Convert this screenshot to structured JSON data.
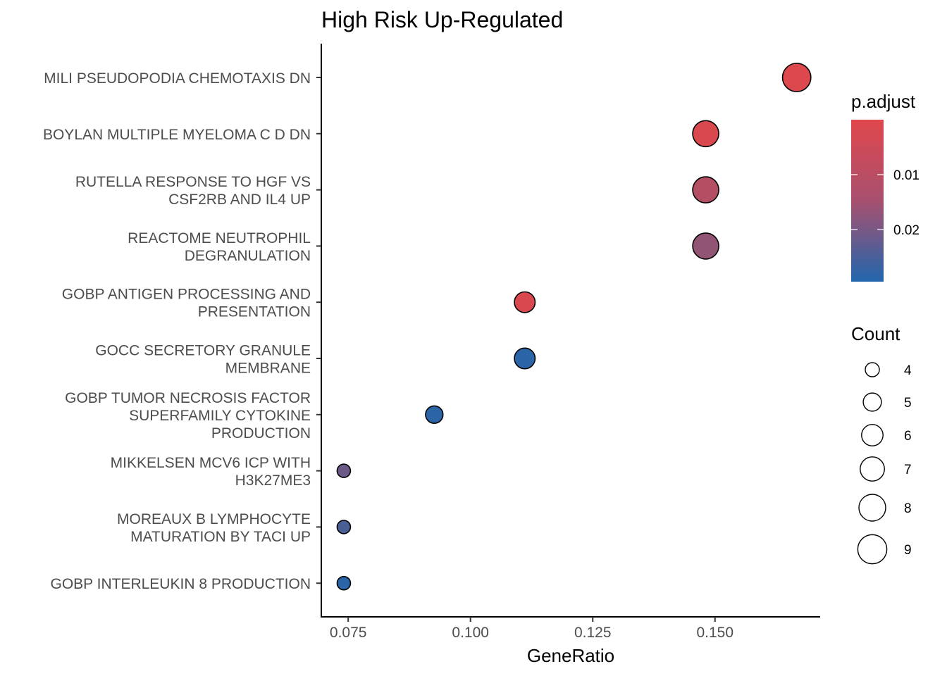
{
  "chart_data": {
    "type": "scatter",
    "title": "High Risk Up-Regulated",
    "xlabel": "GeneRatio",
    "ylabel": "",
    "xlim": [
      0.0695,
      0.1715
    ],
    "x_ticks": [
      0.075,
      0.1,
      0.125,
      0.15
    ],
    "x_tick_labels": [
      "0.075",
      "0.100",
      "0.125",
      "0.150"
    ],
    "grid": false,
    "legend_placement": "right",
    "categories": [
      "MILI PSEUDOPODIA CHEMOTAXIS DN",
      "BOYLAN MULTIPLE MYELOMA C D DN",
      "RUTELLA RESPONSE TO HGF VS\nCSF2RB AND IL4 UP",
      "REACTOME NEUTROPHIL\nDEGRANULATION",
      "GOBP ANTIGEN PROCESSING AND\nPRESENTATION",
      "GOCC SECRETORY GRANULE\nMEMBRANE",
      "GOBP TUMOR NECROSIS FACTOR\nSUPERFAMILY CYTOKINE\nPRODUCTION",
      "MIKKELSEN MCV6 ICP WITH\nH3K27ME3",
      "MOREAUX B LYMPHOCYTE\nMATURATION BY TACI UP",
      "GOBP INTERLEUKIN 8 PRODUCTION"
    ],
    "points": [
      {
        "gene_ratio": 0.1667,
        "count": 9,
        "p_adjust": 0.0005
      },
      {
        "gene_ratio": 0.1481,
        "count": 8,
        "p_adjust": 0.001
      },
      {
        "gene_ratio": 0.1481,
        "count": 8,
        "p_adjust": 0.007
      },
      {
        "gene_ratio": 0.1481,
        "count": 8,
        "p_adjust": 0.012
      },
      {
        "gene_ratio": 0.1111,
        "count": 6,
        "p_adjust": 0.001
      },
      {
        "gene_ratio": 0.1111,
        "count": 6,
        "p_adjust": 0.028
      },
      {
        "gene_ratio": 0.0926,
        "count": 5,
        "p_adjust": 0.028
      },
      {
        "gene_ratio": 0.0741,
        "count": 4,
        "p_adjust": 0.018
      },
      {
        "gene_ratio": 0.0741,
        "count": 4,
        "p_adjust": 0.023
      },
      {
        "gene_ratio": 0.0741,
        "count": 4,
        "p_adjust": 0.028
      }
    ],
    "color_legend": {
      "title": "p.adjust",
      "range": [
        0.0,
        0.0295
      ],
      "ticks": [
        0.01,
        0.02
      ],
      "tick_labels": [
        "0.01",
        "0.02"
      ],
      "low_color": "#E0474C",
      "high_color": "#2166AC",
      "reversed": true
    },
    "size_legend": {
      "title": "Count",
      "values": [
        4,
        5,
        6,
        7,
        8,
        9
      ],
      "labels": [
        "4",
        "5",
        "6",
        "7",
        "8",
        "9"
      ]
    }
  }
}
